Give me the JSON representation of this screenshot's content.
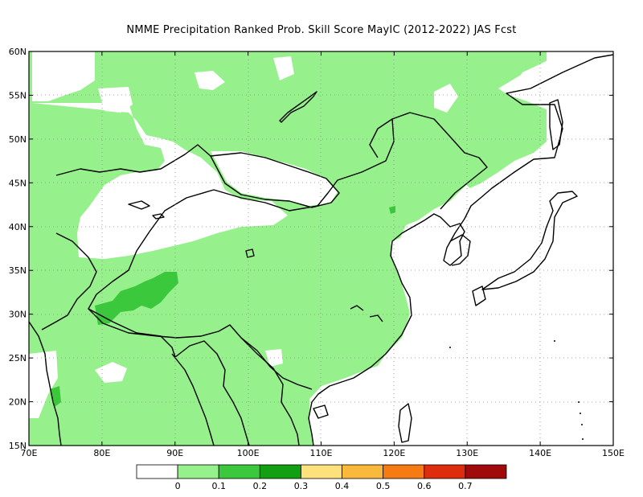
{
  "title": "NMME  Precipitation Ranked Prob. Skill Score MayIC (2012-2022) JAS Fcst",
  "map": {
    "lon_range": [
      70,
      150
    ],
    "lat_range": [
      15,
      60
    ],
    "lon_ticks": [
      "70E",
      "80E",
      "90E",
      "100E",
      "110E",
      "120E",
      "130E",
      "140E",
      "150E"
    ],
    "lat_ticks": [
      "15N",
      "20N",
      "25N",
      "30N",
      "35N",
      "40N",
      "45N",
      "50N",
      "55N",
      "60N"
    ],
    "grid": "dotted"
  },
  "colorbar": {
    "colors": [
      "#ffffff",
      "#96f08c",
      "#3cc83c",
      "#12a012",
      "#fde17a",
      "#f9b93a",
      "#f77a12",
      "#dd2d0d",
      "#a10a0a"
    ],
    "labels": [
      "0",
      "0.1",
      "0.2",
      "0.3",
      "0.4",
      "0.5",
      "0.6",
      "0.7"
    ]
  },
  "colors": {
    "land_skill_low": "#96f08c",
    "land_skill_mid": "#3cc83c",
    "background": "#ffffff"
  }
}
